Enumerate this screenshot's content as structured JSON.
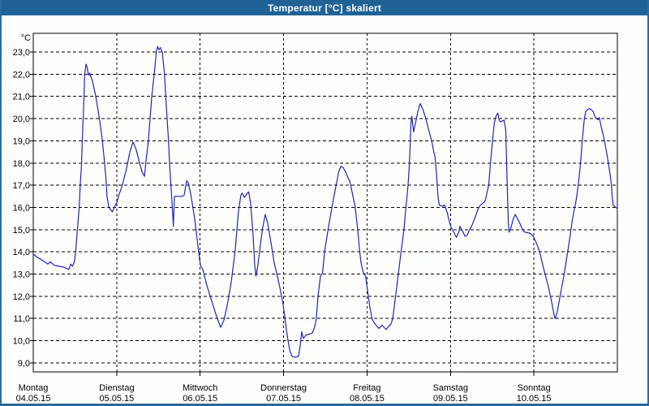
{
  "window": {
    "title": "Temperatur [°C] skaliert"
  },
  "colors": {
    "titlebar_bg": "#1e6296",
    "window_border": "#2a6b9e",
    "window_bg": "#fdfffd",
    "grid": "#000000",
    "line": "#2222bb",
    "text": "#000000"
  },
  "chart_data": {
    "type": "line",
    "title": "Temperatur [°C] skaliert",
    "ylabel": "°C",
    "ylim": [
      8.6,
      23.85
    ],
    "grid": "dashed",
    "legend": "none",
    "y_ticks": [
      {
        "value": 23,
        "label": "23,0"
      },
      {
        "value": 22,
        "label": "22,0"
      },
      {
        "value": 21,
        "label": "21,0"
      },
      {
        "value": 20,
        "label": "20,0"
      },
      {
        "value": 19,
        "label": "19,0"
      },
      {
        "value": 18,
        "label": "18,0"
      },
      {
        "value": 17,
        "label": "17,0"
      },
      {
        "value": 16,
        "label": "16,0"
      },
      {
        "value": 15,
        "label": "15,0"
      },
      {
        "value": 14,
        "label": "14,0"
      },
      {
        "value": 13,
        "label": "13,0"
      },
      {
        "value": 12,
        "label": "12,0"
      },
      {
        "value": 11,
        "label": "11,0"
      },
      {
        "value": 10,
        "label": "10,0"
      },
      {
        "value": 9,
        "label": "9,0"
      }
    ],
    "x_days": [
      {
        "name": "Montag",
        "date": "04.05.15"
      },
      {
        "name": "Dienstag",
        "date": "05.05.15"
      },
      {
        "name": "Mittwoch",
        "date": "06.05.15"
      },
      {
        "name": "Donnerstag",
        "date": "07.05.15"
      },
      {
        "name": "Freitag",
        "date": "08.05.15"
      },
      {
        "name": "Samstag",
        "date": "09.05.15"
      },
      {
        "name": "Sonntag",
        "date": "10.05.15"
      }
    ],
    "x_unit": "hours since 04.05.15 00:00",
    "x_range_hours": [
      0,
      168
    ],
    "series": [
      {
        "name": "Temperatur",
        "color": "#2222bb",
        "points": [
          [
            0,
            13.9
          ],
          [
            1.2,
            13.75
          ],
          [
            2.3,
            13.65
          ],
          [
            3.3,
            13.55
          ],
          [
            4.2,
            13.45
          ],
          [
            4.9,
            13.55
          ],
          [
            6.0,
            13.4
          ],
          [
            7.5,
            13.35
          ],
          [
            9.0,
            13.3
          ],
          [
            10.2,
            13.2
          ],
          [
            10.8,
            13.45
          ],
          [
            11.3,
            13.35
          ],
          [
            11.8,
            13.55
          ],
          [
            12.2,
            14.0
          ],
          [
            12.7,
            15.0
          ],
          [
            13.2,
            16.0
          ],
          [
            13.5,
            17.0
          ],
          [
            13.9,
            18.0
          ],
          [
            14.1,
            19.0
          ],
          [
            14.35,
            20.0
          ],
          [
            14.6,
            21.0
          ],
          [
            14.8,
            22.0
          ],
          [
            15.2,
            22.45
          ],
          [
            15.5,
            22.3
          ],
          [
            15.9,
            21.95
          ],
          [
            16.2,
            22.05
          ],
          [
            17.0,
            21.7
          ],
          [
            17.85,
            21.1
          ],
          [
            18.4,
            20.6
          ],
          [
            19.1,
            19.9
          ],
          [
            19.8,
            19.1
          ],
          [
            20.4,
            18.2
          ],
          [
            20.9,
            17.3
          ],
          [
            21.2,
            16.5
          ],
          [
            21.7,
            16.05
          ],
          [
            22.2,
            15.9
          ],
          [
            22.75,
            15.8
          ],
          [
            23.2,
            15.95
          ],
          [
            23.6,
            16.1
          ],
          [
            24.0,
            16.2
          ],
          [
            24.5,
            16.5
          ],
          [
            25.4,
            16.9
          ],
          [
            26.6,
            17.6
          ],
          [
            27.8,
            18.5
          ],
          [
            28.7,
            18.95
          ],
          [
            29.6,
            18.6
          ],
          [
            30.6,
            18.0
          ],
          [
            31.3,
            17.6
          ],
          [
            32.0,
            17.4
          ],
          [
            32.5,
            18.2
          ],
          [
            33.1,
            19.0
          ],
          [
            33.6,
            20.0
          ],
          [
            34.1,
            21.0
          ],
          [
            34.8,
            22.0
          ],
          [
            35.4,
            23.0
          ],
          [
            35.75,
            23.25
          ],
          [
            36.2,
            23.1
          ],
          [
            36.55,
            23.2
          ],
          [
            37.1,
            23.0
          ],
          [
            37.75,
            22.0
          ],
          [
            38.1,
            21.0
          ],
          [
            38.5,
            20.0
          ],
          [
            38.9,
            19.0
          ],
          [
            39.2,
            18.0
          ],
          [
            39.6,
            17.0
          ],
          [
            40.0,
            16.0
          ],
          [
            40.3,
            15.15
          ],
          [
            40.6,
            16.5
          ],
          [
            41.8,
            16.5
          ],
          [
            42.9,
            16.5
          ],
          [
            43.4,
            16.55
          ],
          [
            44.1,
            17.2
          ],
          [
            44.6,
            17.1
          ],
          [
            45.3,
            16.6
          ],
          [
            45.7,
            16.2
          ],
          [
            46.4,
            15.5
          ],
          [
            47.1,
            14.6
          ],
          [
            47.8,
            13.7
          ],
          [
            48.1,
            13.4
          ],
          [
            48.8,
            13.2
          ],
          [
            49.9,
            12.5
          ],
          [
            51.1,
            11.9
          ],
          [
            52.3,
            11.3
          ],
          [
            53.4,
            10.8
          ],
          [
            53.9,
            10.6
          ],
          [
            54.8,
            10.9
          ],
          [
            55.8,
            11.6
          ],
          [
            56.9,
            12.6
          ],
          [
            58.1,
            14.1
          ],
          [
            59.0,
            15.8
          ],
          [
            59.7,
            16.55
          ],
          [
            60.1,
            16.65
          ],
          [
            60.7,
            16.45
          ],
          [
            61.4,
            16.6
          ],
          [
            61.95,
            16.7
          ],
          [
            62.5,
            16.2
          ],
          [
            63.2,
            14.8
          ],
          [
            63.7,
            13.4
          ],
          [
            64.05,
            12.9
          ],
          [
            64.6,
            13.4
          ],
          [
            65.3,
            14.3
          ],
          [
            66.0,
            15.1
          ],
          [
            66.7,
            15.68
          ],
          [
            67.4,
            15.3
          ],
          [
            68.4,
            14.4
          ],
          [
            69.3,
            13.5
          ],
          [
            70.2,
            12.9
          ],
          [
            71.2,
            12.2
          ],
          [
            71.9,
            11.6
          ],
          [
            72.3,
            11.1
          ],
          [
            72.8,
            10.5
          ],
          [
            73.3,
            10.0
          ],
          [
            73.8,
            9.55
          ],
          [
            74.4,
            9.3
          ],
          [
            75.4,
            9.25
          ],
          [
            76.3,
            9.3
          ],
          [
            76.8,
            9.8
          ],
          [
            77.2,
            10.4
          ],
          [
            77.7,
            10.1
          ],
          [
            78.4,
            10.25
          ],
          [
            79.6,
            10.3
          ],
          [
            80.3,
            10.35
          ],
          [
            80.9,
            10.6
          ],
          [
            81.4,
            11.0
          ],
          [
            81.9,
            12.0
          ],
          [
            82.6,
            12.9
          ],
          [
            83.2,
            13.05
          ],
          [
            83.8,
            14.0
          ],
          [
            84.8,
            15.0
          ],
          [
            85.9,
            16.0
          ],
          [
            87.1,
            17.0
          ],
          [
            87.85,
            17.6
          ],
          [
            88.45,
            17.85
          ],
          [
            89.1,
            17.8
          ],
          [
            90.0,
            17.55
          ],
          [
            90.6,
            17.3
          ],
          [
            91.0,
            17.2
          ],
          [
            91.3,
            17.0
          ],
          [
            92.6,
            16.0
          ],
          [
            93.3,
            15.0
          ],
          [
            93.9,
            14.0
          ],
          [
            94.3,
            13.5
          ],
          [
            94.85,
            13.1
          ],
          [
            95.6,
            12.9
          ],
          [
            96.1,
            12.3
          ],
          [
            96.8,
            11.5
          ],
          [
            97.5,
            10.95
          ],
          [
            98.1,
            10.8
          ],
          [
            99.4,
            10.55
          ],
          [
            100.3,
            10.7
          ],
          [
            101.5,
            10.5
          ],
          [
            102.2,
            10.65
          ],
          [
            102.9,
            10.75
          ],
          [
            103.4,
            11.0
          ],
          [
            104.2,
            12.0
          ],
          [
            105.0,
            13.0
          ],
          [
            105.8,
            14.0
          ],
          [
            106.6,
            15.0
          ],
          [
            107.2,
            16.0
          ],
          [
            107.8,
            17.0
          ],
          [
            108.2,
            18.0
          ],
          [
            108.45,
            19.0
          ],
          [
            108.65,
            19.8
          ],
          [
            108.9,
            20.1
          ],
          [
            109.4,
            19.4
          ],
          [
            110.6,
            20.3
          ],
          [
            111.3,
            20.68
          ],
          [
            112.1,
            20.4
          ],
          [
            112.9,
            20.0
          ],
          [
            113.9,
            19.4
          ],
          [
            114.6,
            19.0
          ],
          [
            115.2,
            18.5
          ],
          [
            115.5,
            18.35
          ],
          [
            116.0,
            17.5
          ],
          [
            116.4,
            16.5
          ],
          [
            116.8,
            16.1
          ],
          [
            117.6,
            16.05
          ],
          [
            118.3,
            16.1
          ],
          [
            119.0,
            15.8
          ],
          [
            119.6,
            15.4
          ],
          [
            120.2,
            15.1
          ],
          [
            120.9,
            14.9
          ],
          [
            121.7,
            14.65
          ],
          [
            122.4,
            14.9
          ],
          [
            122.7,
            15.15
          ],
          [
            123.4,
            14.95
          ],
          [
            124.2,
            14.7
          ],
          [
            124.8,
            14.75
          ],
          [
            125.5,
            15.0
          ],
          [
            126.2,
            15.2
          ],
          [
            127.2,
            15.6
          ],
          [
            128.0,
            15.95
          ],
          [
            128.6,
            16.1
          ],
          [
            129.4,
            16.2
          ],
          [
            130.0,
            16.3
          ],
          [
            130.7,
            16.8
          ],
          [
            131.0,
            17.0
          ],
          [
            131.5,
            18.0
          ],
          [
            132.1,
            19.0
          ],
          [
            132.6,
            19.8
          ],
          [
            133.1,
            20.1
          ],
          [
            133.6,
            20.25
          ],
          [
            134.0,
            19.95
          ],
          [
            134.4,
            19.85
          ],
          [
            135.0,
            19.9
          ],
          [
            135.4,
            19.93
          ],
          [
            135.9,
            19.5
          ],
          [
            136.15,
            18.0
          ],
          [
            136.4,
            16.5
          ],
          [
            136.65,
            15.3
          ],
          [
            136.9,
            14.88
          ],
          [
            137.4,
            15.1
          ],
          [
            138.0,
            15.45
          ],
          [
            138.6,
            15.68
          ],
          [
            139.3,
            15.5
          ],
          [
            139.9,
            15.3
          ],
          [
            140.6,
            15.05
          ],
          [
            141.2,
            14.9
          ],
          [
            141.9,
            14.87
          ],
          [
            142.6,
            14.85
          ],
          [
            143.2,
            14.8
          ],
          [
            143.8,
            14.7
          ],
          [
            144.1,
            14.6
          ],
          [
            144.7,
            14.4
          ],
          [
            145.2,
            14.2
          ],
          [
            145.8,
            13.9
          ],
          [
            146.4,
            13.5
          ],
          [
            147.2,
            13.0
          ],
          [
            148.2,
            12.4
          ],
          [
            148.9,
            11.9
          ],
          [
            149.4,
            11.5
          ],
          [
            149.8,
            11.15
          ],
          [
            150.1,
            11.0
          ],
          [
            150.7,
            11.3
          ],
          [
            151.4,
            11.9
          ],
          [
            152.1,
            12.5
          ],
          [
            152.8,
            13.1
          ],
          [
            153.4,
            13.7
          ],
          [
            153.9,
            14.2
          ],
          [
            154.5,
            14.8
          ],
          [
            155.0,
            15.4
          ],
          [
            155.6,
            15.9
          ],
          [
            156.0,
            16.2
          ],
          [
            156.4,
            16.6
          ],
          [
            156.9,
            17.2
          ],
          [
            157.4,
            18.0
          ],
          [
            157.8,
            18.8
          ],
          [
            158.2,
            19.5
          ],
          [
            158.5,
            20.0
          ],
          [
            158.9,
            20.3
          ],
          [
            159.5,
            20.42
          ],
          [
            159.8,
            20.45
          ],
          [
            160.5,
            20.4
          ],
          [
            161.1,
            20.3
          ],
          [
            161.4,
            20.15
          ],
          [
            161.9,
            20.0
          ],
          [
            162.5,
            19.95
          ],
          [
            162.8,
            20.05
          ],
          [
            163.4,
            19.6
          ],
          [
            164.0,
            19.2
          ],
          [
            164.4,
            18.9
          ],
          [
            165.0,
            18.4
          ],
          [
            165.4,
            18.0
          ],
          [
            165.9,
            17.5
          ],
          [
            166.3,
            17.0
          ],
          [
            166.5,
            16.5
          ],
          [
            166.8,
            16.1
          ],
          [
            167.2,
            16.05
          ],
          [
            167.5,
            16.0
          ],
          [
            168,
            15.95
          ]
        ]
      }
    ]
  }
}
